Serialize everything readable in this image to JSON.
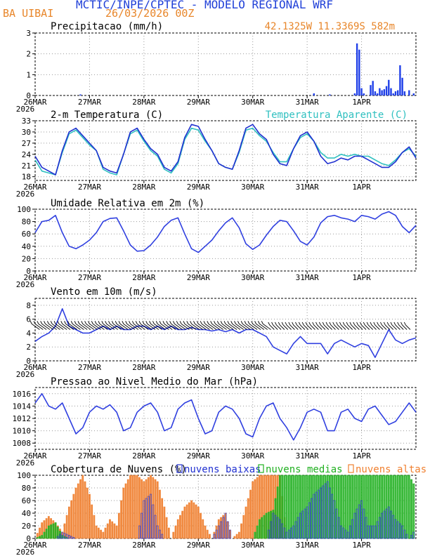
{
  "header": {
    "title": "MCTIC/INPE/CPTEC - MODELO REGIONAL WRF",
    "location": "BA UIBAI",
    "run": "26/03/2026 00Z",
    "coords": "42.1325W 11.3369S 582m"
  },
  "x_axis": {
    "day_labels": [
      "26MAR",
      "27MAR",
      "28MAR",
      "29MAR",
      "30MAR",
      "31MAR",
      "1APR"
    ],
    "year_label": "2026",
    "start_hour": 0,
    "end_hour": 168
  },
  "colors": {
    "precip": "#2040e8",
    "temperature": "#2030d0",
    "apparent": "#30c0c0",
    "line": "#3040e0",
    "low": "#2030d0",
    "mid": "#20b020",
    "high": "#f08030",
    "orange_text": "#e8862a"
  },
  "chart_data": [
    {
      "id": "precip",
      "type": "bar",
      "title": "Precipitacao (mm/h)",
      "ylim": [
        0,
        3
      ],
      "yticks": [
        0,
        1,
        2,
        3
      ],
      "x_hours": [
        20,
        123,
        130,
        141,
        142,
        143,
        144,
        145,
        148,
        149,
        150,
        151,
        152,
        153,
        154,
        155,
        156,
        157,
        158,
        159,
        160,
        161,
        162,
        163,
        165,
        167
      ],
      "values": [
        0.05,
        0.1,
        0.05,
        0.1,
        2.5,
        2.2,
        0.35,
        0.1,
        0.5,
        0.7,
        0.2,
        0.1,
        0.35,
        0.25,
        0.3,
        0.45,
        0.75,
        0.35,
        0.1,
        0.2,
        0.25,
        1.45,
        0.85,
        0.2,
        0.25,
        0.1
      ]
    },
    {
      "id": "temperature",
      "type": "line",
      "title": "2-m Temperatura (C)",
      "ylim": [
        17,
        33
      ],
      "yticks": [
        18,
        21,
        24,
        27,
        30,
        33
      ],
      "x_hours": [
        0,
        3,
        6,
        9,
        12,
        15,
        18,
        21,
        24,
        27,
        30,
        33,
        36,
        39,
        42,
        45,
        48,
        51,
        54,
        57,
        60,
        63,
        66,
        69,
        72,
        75,
        78,
        81,
        84,
        87,
        90,
        93,
        96,
        99,
        102,
        105,
        108,
        111,
        114,
        117,
        120,
        123,
        126,
        129,
        132,
        135,
        138,
        141,
        144,
        147,
        150,
        153,
        156,
        159,
        162,
        165,
        168
      ],
      "series": [
        {
          "name": "2-m Temperatura (C)",
          "values": [
            23.5,
            20.5,
            19.5,
            18.5,
            25,
            30,
            31,
            29,
            27,
            25,
            20.5,
            19.5,
            19,
            24,
            30,
            31,
            28,
            25.5,
            24,
            20.5,
            19.5,
            22,
            28.5,
            32,
            31.5,
            28,
            25,
            21.5,
            20.5,
            20,
            25,
            31,
            32,
            29.5,
            28,
            24,
            21.5,
            21,
            25.5,
            29,
            30,
            27.5,
            23.5,
            21.5,
            22,
            23,
            22.5,
            23.5,
            23.5,
            22.5,
            21.5,
            20.5,
            20.5,
            22,
            24.5,
            26,
            23
          ]
        },
        {
          "name": "Temperatura Aparente (C)",
          "values": [
            22.5,
            19.5,
            19,
            18.5,
            24.5,
            29.5,
            30.5,
            28.5,
            26.5,
            25,
            20,
            19,
            18.5,
            24,
            29.5,
            30.5,
            27.5,
            25,
            23.5,
            20,
            19,
            21.5,
            28,
            31,
            30.5,
            27.5,
            25,
            21.5,
            20.5,
            20,
            24.5,
            30.5,
            31,
            29,
            27.5,
            24.5,
            22,
            22,
            25.5,
            28.5,
            29.5,
            27.5,
            24.5,
            23,
            23,
            24,
            23.5,
            24,
            23.5,
            23.5,
            22.5,
            21.5,
            21,
            22.5,
            24.5,
            25.5,
            23.5
          ]
        }
      ],
      "legend": "Temperatura Aparente (C)"
    },
    {
      "id": "humidity",
      "type": "line",
      "title": "Umidade Relativa em 2m (%)",
      "ylim": [
        0,
        100
      ],
      "yticks": [
        0,
        20,
        40,
        60,
        80,
        100
      ],
      "x_hours": [
        0,
        3,
        6,
        9,
        12,
        15,
        18,
        21,
        24,
        27,
        30,
        33,
        36,
        39,
        42,
        45,
        48,
        51,
        54,
        57,
        60,
        63,
        66,
        69,
        72,
        75,
        78,
        81,
        84,
        87,
        90,
        93,
        96,
        99,
        102,
        105,
        108,
        111,
        114,
        117,
        120,
        123,
        126,
        129,
        132,
        135,
        138,
        141,
        144,
        147,
        150,
        153,
        156,
        159,
        162,
        165,
        168
      ],
      "values": [
        62,
        80,
        82,
        90,
        62,
        40,
        36,
        42,
        50,
        62,
        80,
        85,
        86,
        65,
        42,
        32,
        33,
        42,
        55,
        72,
        82,
        86,
        60,
        36,
        30,
        40,
        50,
        65,
        78,
        86,
        70,
        44,
        35,
        42,
        58,
        72,
        82,
        80,
        65,
        48,
        42,
        55,
        78,
        88,
        90,
        86,
        84,
        80,
        90,
        88,
        84,
        92,
        96,
        90,
        72,
        62,
        74
      ]
    },
    {
      "id": "wind",
      "type": "line",
      "title": "Vento em 10m (m/s)",
      "ylim": [
        0,
        9
      ],
      "yticks": [
        0,
        2,
        4,
        6,
        8
      ],
      "x_hours": [
        0,
        3,
        6,
        9,
        12,
        15,
        18,
        21,
        24,
        27,
        30,
        33,
        36,
        39,
        42,
        45,
        48,
        51,
        54,
        57,
        60,
        63,
        66,
        69,
        72,
        75,
        78,
        81,
        84,
        87,
        90,
        93,
        96,
        99,
        102,
        105,
        108,
        111,
        114,
        117,
        120,
        123,
        126,
        129,
        132,
        135,
        138,
        141,
        144,
        147,
        150,
        153,
        156,
        159,
        162,
        165,
        168
      ],
      "values": [
        2.8,
        3.5,
        4.0,
        5.0,
        7.5,
        5.0,
        4.5,
        4.0,
        4.0,
        4.5,
        5.0,
        4.5,
        5.0,
        4.5,
        4.5,
        5.0,
        5.0,
        4.5,
        5.0,
        4.5,
        5.0,
        4.5,
        4.5,
        4.8,
        4.5,
        4.5,
        4.3,
        4.5,
        4.2,
        4.5,
        4.0,
        4.5,
        4.5,
        4.0,
        3.5,
        2.0,
        1.5,
        1.0,
        2.5,
        3.5,
        2.5,
        2.5,
        2.5,
        1.0,
        2.5,
        3.0,
        2.5,
        2.0,
        2.5,
        2.2,
        0.5,
        2.5,
        4.5,
        3.0,
        2.5,
        3.0,
        3.3
      ]
    },
    {
      "id": "pressure",
      "type": "line",
      "title": "Pressao ao Nivel Medio do Mar (hPa)",
      "ylim": [
        1007,
        1017
      ],
      "yticks": [
        1008,
        1010,
        1012,
        1014,
        1016
      ],
      "x_hours": [
        0,
        3,
        6,
        9,
        12,
        15,
        18,
        21,
        24,
        27,
        30,
        33,
        36,
        39,
        42,
        45,
        48,
        51,
        54,
        57,
        60,
        63,
        66,
        69,
        72,
        75,
        78,
        81,
        84,
        87,
        90,
        93,
        96,
        99,
        102,
        105,
        108,
        111,
        114,
        117,
        120,
        123,
        126,
        129,
        132,
        135,
        138,
        141,
        144,
        147,
        150,
        153,
        156,
        159,
        162,
        165,
        168
      ],
      "values": [
        1014.5,
        1016,
        1014,
        1013.5,
        1014.5,
        1012,
        1009.5,
        1010.5,
        1013,
        1014,
        1013.5,
        1014.2,
        1013,
        1010,
        1010.5,
        1013,
        1014,
        1014.5,
        1013,
        1010,
        1010.5,
        1013.5,
        1014.5,
        1015,
        1012,
        1009.5,
        1010,
        1013,
        1014,
        1013.5,
        1012,
        1009.5,
        1009,
        1012,
        1014,
        1014.5,
        1012,
        1010.5,
        1008.5,
        1010.5,
        1013,
        1013.5,
        1013,
        1010,
        1010,
        1013,
        1013.5,
        1012,
        1011.5,
        1013.5,
        1014,
        1012.5,
        1011,
        1011.5,
        1013,
        1014.5,
        1013
      ]
    },
    {
      "id": "clouds",
      "type": "bar",
      "title": "Cobertura de Nuvens (%)",
      "ylim": [
        0,
        100
      ],
      "yticks": [
        0,
        20,
        40,
        60,
        80,
        100
      ],
      "legend": [
        "nuvens baixas",
        "nuvens medias",
        "nuvens altas"
      ],
      "x_hours": [
        0,
        3,
        6,
        9,
        12,
        15,
        18,
        21,
        24,
        27,
        30,
        33,
        36,
        39,
        42,
        45,
        48,
        51,
        54,
        57,
        60,
        63,
        66,
        69,
        72,
        75,
        78,
        81,
        84,
        87,
        90,
        93,
        96,
        99,
        102,
        105,
        108,
        111,
        114,
        117,
        120,
        123,
        126,
        129,
        132,
        135,
        138,
        141,
        144,
        147,
        150,
        153,
        156,
        159,
        162,
        165,
        168
      ],
      "series": [
        {
          "name": "nuvens altas",
          "values": [
            0,
            25,
            35,
            25,
            10,
            50,
            80,
            100,
            70,
            20,
            10,
            30,
            20,
            80,
            100,
            100,
            90,
            100,
            90,
            50,
            0,
            30,
            50,
            60,
            50,
            20,
            0,
            30,
            40,
            0,
            10,
            50,
            90,
            100,
            100,
            100,
            100,
            0,
            0,
            0,
            0,
            0,
            0,
            0,
            0,
            0,
            0,
            0,
            0,
            0,
            0,
            0,
            0,
            0,
            0,
            0,
            0
          ]
        },
        {
          "name": "nuvens medias",
          "values": [
            0,
            5,
            20,
            25,
            5,
            0,
            0,
            0,
            0,
            0,
            0,
            0,
            0,
            0,
            0,
            0,
            0,
            0,
            0,
            0,
            0,
            0,
            0,
            0,
            0,
            0,
            0,
            0,
            0,
            0,
            0,
            0,
            0,
            30,
            40,
            45,
            100,
            100,
            100,
            100,
            100,
            100,
            100,
            100,
            100,
            100,
            100,
            100,
            100,
            100,
            100,
            100,
            100,
            100,
            100,
            100,
            80
          ]
        },
        {
          "name": "nuvens baixas",
          "values": [
            0,
            0,
            0,
            0,
            10,
            5,
            0,
            0,
            0,
            0,
            0,
            0,
            0,
            0,
            0,
            0,
            60,
            70,
            20,
            0,
            0,
            0,
            0,
            0,
            0,
            0,
            0,
            20,
            40,
            0,
            0,
            0,
            0,
            0,
            0,
            40,
            30,
            10,
            20,
            40,
            50,
            70,
            80,
            90,
            60,
            20,
            10,
            40,
            60,
            20,
            20,
            40,
            50,
            30,
            20,
            0,
            15
          ]
        }
      ]
    }
  ]
}
